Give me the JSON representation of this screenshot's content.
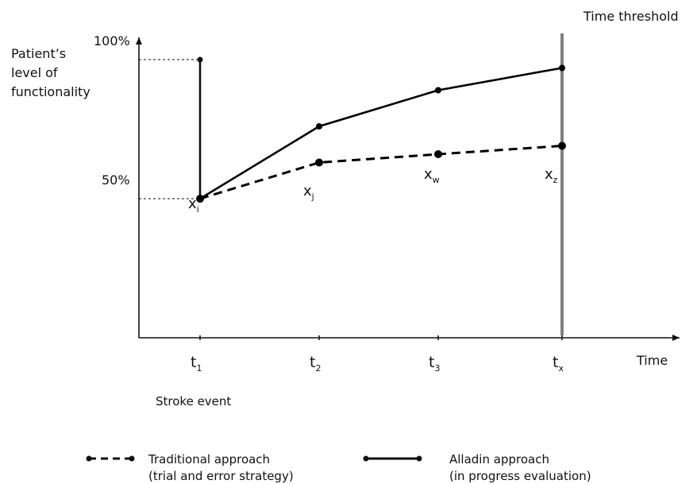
{
  "chart_data": {
    "type": "line",
    "y_axis": {
      "label_lines": [
        "Patient’s",
        "level of",
        "functionality"
      ],
      "ticks": [
        {
          "value": 50,
          "label": "50%"
        },
        {
          "value": 100,
          "label": "100%"
        }
      ]
    },
    "x_axis": {
      "label": "Time",
      "ticks": [
        {
          "key": "t1",
          "base": "t",
          "sub": "1"
        },
        {
          "key": "t2",
          "base": "t",
          "sub": "2"
        },
        {
          "key": "t3",
          "base": "t",
          "sub": "3"
        },
        {
          "key": "tx",
          "base": "t",
          "sub": "x"
        }
      ]
    },
    "ylim": [
      0,
      100
    ],
    "series": [
      {
        "name": "Traditional approach",
        "name_line2": "(trial and error strategy)",
        "style": "dashed",
        "color": "#000000",
        "points": [
          {
            "x": "t1",
            "y": 50
          },
          {
            "x": "t2",
            "y": 63
          },
          {
            "x": "t3",
            "y": 66
          },
          {
            "x": "tx",
            "y": 69
          }
        ]
      },
      {
        "name": "Alladin approach",
        "name_line2": "(in progress evaluation)",
        "style": "solid",
        "color": "#000000",
        "points": [
          {
            "x": "t1",
            "y": 50
          },
          {
            "x": "t2",
            "y": 76
          },
          {
            "x": "t3",
            "y": 89
          },
          {
            "x": "tx",
            "y": 97
          }
        ]
      }
    ],
    "recovery_jump": {
      "x": "t1",
      "from": 50,
      "to": 100
    },
    "point_labels": [
      {
        "x": "t1",
        "base": "x",
        "sub": "i"
      },
      {
        "x": "t2",
        "base": "x",
        "sub": "j"
      },
      {
        "x": "t3",
        "base": "x",
        "sub": "w"
      },
      {
        "x": "tx",
        "base": "x",
        "sub": "z"
      }
    ],
    "annotations": {
      "threshold": "Time threshold",
      "threshold_color": "#808080",
      "event": "Stroke event"
    },
    "legend": {
      "position": "bottom"
    }
  }
}
